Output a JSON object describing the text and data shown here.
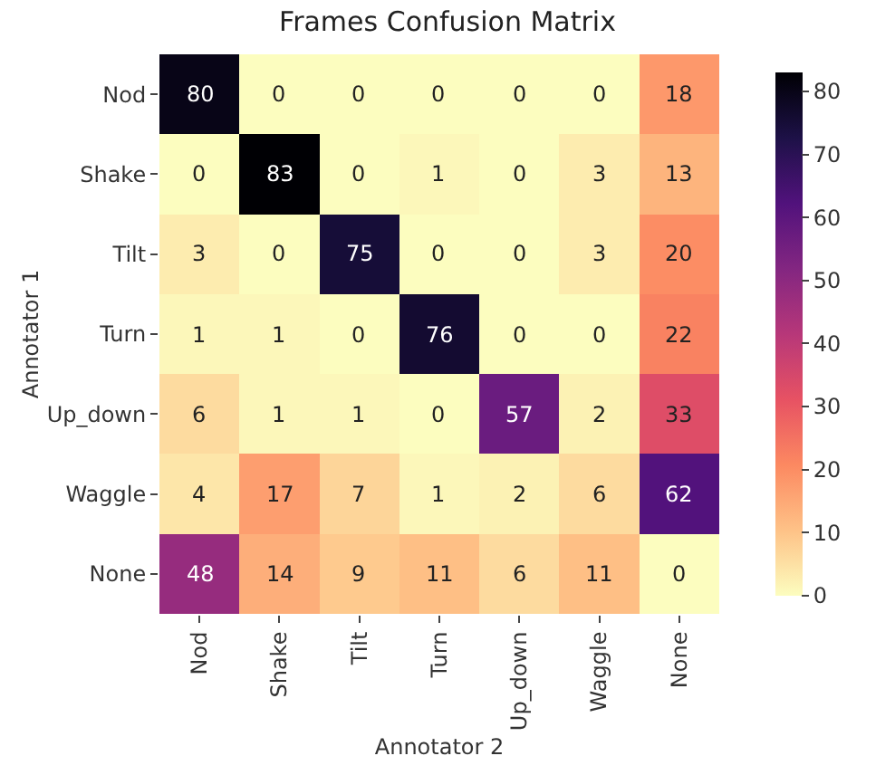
{
  "chart_data": {
    "type": "heatmap",
    "title": "Frames Confusion Matrix",
    "xlabel": "Annotator 2",
    "ylabel": "Annotator 1",
    "categories": [
      "Nod",
      "Shake",
      "Tilt",
      "Turn",
      "Up_down",
      "Waggle",
      "None"
    ],
    "y_categories": [
      "Nod",
      "Shake",
      "Tilt",
      "Turn",
      "Up_down",
      "Waggle",
      "None"
    ],
    "cells": [
      [
        80,
        0,
        0,
        0,
        0,
        0,
        18
      ],
      [
        0,
        83,
        0,
        1,
        0,
        3,
        13
      ],
      [
        3,
        0,
        75,
        0,
        0,
        3,
        20
      ],
      [
        1,
        1,
        0,
        76,
        0,
        0,
        22
      ],
      [
        6,
        1,
        1,
        0,
        57,
        2,
        33
      ],
      [
        4,
        17,
        7,
        1,
        2,
        6,
        62
      ],
      [
        48,
        14,
        9,
        11,
        6,
        11,
        0
      ]
    ],
    "clim": [
      0,
      83
    ],
    "cticks": [
      0,
      10,
      20,
      30,
      40,
      50,
      60,
      70,
      80
    ],
    "data_labels": true
  }
}
